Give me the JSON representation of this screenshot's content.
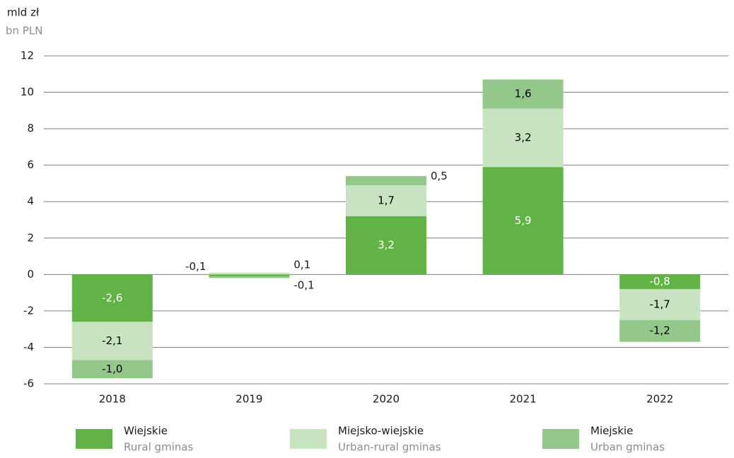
{
  "chart_data": {
    "type": "stacked_bar",
    "y_label": "mld zł",
    "y_label_en": "bn PLN",
    "categories": [
      "2018",
      "2019",
      "2020",
      "2021",
      "2022"
    ],
    "series": [
      {
        "name": "Wiejskie",
        "name_en": "Rural gminas",
        "color": "#62b346",
        "text_color": "#ffffff",
        "values": [
          -2.6,
          -0.1,
          3.2,
          5.9,
          -0.8
        ],
        "value_labels": [
          "-2,6",
          "-0,1",
          "3,2",
          "5,9",
          "-0,8"
        ]
      },
      {
        "name": "Miejsko-wiejskie",
        "name_en": "Urban-rural gminas",
        "color": "#c8e3c0",
        "text_color": "#000000",
        "values": [
          -2.1,
          0.1,
          1.7,
          3.2,
          -1.7
        ],
        "value_labels": [
          "-2,1",
          "0,1",
          "1,7",
          "3,2",
          "-1,7"
        ]
      },
      {
        "name": "Miejskie",
        "name_en": "Urban gminas",
        "color": "#94c78a",
        "text_color": "#000000",
        "values": [
          -1.0,
          -0.1,
          0.5,
          1.6,
          -1.2
        ],
        "value_labels": [
          "-1,0",
          "-0,1",
          "0,5",
          "1,6",
          "-1,2"
        ]
      }
    ],
    "ylim": [
      -6,
      12
    ],
    "yticks": [
      -6,
      -4,
      -2,
      0,
      2,
      4,
      6,
      8,
      10,
      12
    ],
    "grid": true
  }
}
